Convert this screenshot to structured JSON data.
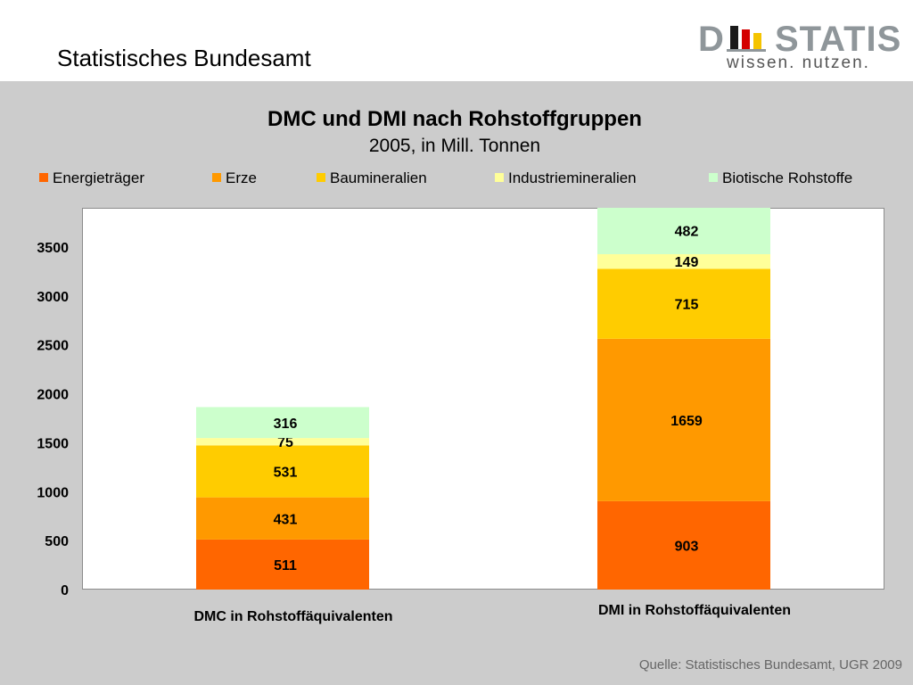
{
  "header": {
    "org_title": "Statistisches Bundesamt",
    "logo": {
      "wordmark_left": "D",
      "wordmark_right": "STATIS",
      "tagline": "wissen. nutzen."
    }
  },
  "source": "Quelle: Statistisches Bundesamt, UGR 2009",
  "chart_data": {
    "type": "bar",
    "stacked": true,
    "title": "DMC und DMI nach Rohstoffgruppen",
    "subtitle": "2005, in Mill. Tonnen",
    "xlabel": "",
    "ylabel": "",
    "categories": [
      "DMC in Rohstoffäquivalenten",
      "DMI in Rohstoffäquivalenten"
    ],
    "series": [
      {
        "name": "Energieträger",
        "color": "#ff6600",
        "values": [
          511,
          903
        ]
      },
      {
        "name": "Erze",
        "color": "#ff9900",
        "values": [
          431,
          1659
        ]
      },
      {
        "name": "Baumineralien",
        "color": "#ffcc00",
        "values": [
          531,
          715
        ]
      },
      {
        "name": "Industriemineralien",
        "color": "#ffff99",
        "values": [
          75,
          149
        ]
      },
      {
        "name": "Biotische Rohstoffe",
        "color": "#ccffcc",
        "values": [
          316,
          482
        ]
      }
    ],
    "yticks": [
      0,
      500,
      1000,
      1500,
      2000,
      2500,
      3000,
      3500
    ],
    "ylim": [
      0,
      3900
    ],
    "grid": false,
    "legend": "top"
  }
}
